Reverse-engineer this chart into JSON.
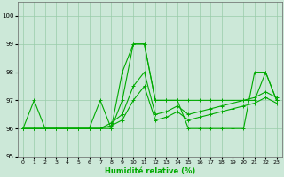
{
  "xlabel": "Humidité relative (%)",
  "ylabel": "",
  "background_color": "#cce8d8",
  "grid_color": "#99ccaa",
  "line_color": "#00aa00",
  "xlim": [
    -0.5,
    23.5
  ],
  "ylim": [
    95,
    100.5
  ],
  "yticks": [
    95,
    96,
    97,
    98,
    99,
    100
  ],
  "xticks": [
    0,
    1,
    2,
    3,
    4,
    5,
    6,
    7,
    8,
    9,
    10,
    11,
    12,
    13,
    14,
    15,
    16,
    17,
    18,
    19,
    20,
    21,
    22,
    23
  ],
  "series": [
    [
      96,
      97,
      96,
      96,
      96,
      96,
      96,
      97,
      96,
      98,
      99,
      99,
      97,
      97,
      97,
      97,
      97,
      97,
      97,
      97,
      97,
      97,
      98,
      97
    ],
    [
      96,
      96,
      96,
      96,
      96,
      96,
      96,
      96,
      96,
      97,
      99,
      99,
      97,
      97,
      97,
      96,
      96,
      96,
      96,
      96,
      96,
      98,
      98,
      97
    ],
    [
      96,
      96,
      96,
      96,
      96,
      96,
      96,
      96,
      96.2,
      96.5,
      97.5,
      98,
      96.5,
      96.6,
      96.8,
      96.5,
      96.6,
      96.7,
      96.8,
      96.9,
      97.0,
      97.1,
      97.3,
      97.1
    ],
    [
      96,
      96,
      96,
      96,
      96,
      96,
      96,
      96,
      96.1,
      96.3,
      97.0,
      97.5,
      96.3,
      96.4,
      96.6,
      96.3,
      96.4,
      96.5,
      96.6,
      96.7,
      96.8,
      96.9,
      97.1,
      96.9
    ]
  ]
}
